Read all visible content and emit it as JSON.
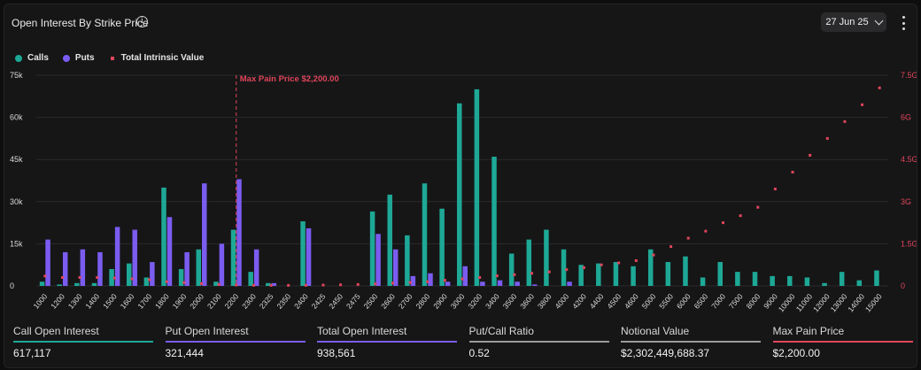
{
  "header": {
    "title": "Open Interest By Strike Price",
    "info_icon": "info-icon",
    "date_value": "27 Jun 25",
    "menu_icon": "kebab-menu-icon"
  },
  "legend": {
    "calls": "Calls",
    "puts": "Puts",
    "intrinsic": "Total Intrinsic Value"
  },
  "colors": {
    "calls": "#1ea896",
    "puts": "#7b5cf0",
    "intrinsic": "#e0455a",
    "grid": "#2a2a2d",
    "axis_text": "#d9d9d9"
  },
  "chart_data": {
    "type": "bar",
    "categories": [
      "1000",
      "1200",
      "1300",
      "1400",
      "1500",
      "1600",
      "1700",
      "1800",
      "1900",
      "2000",
      "2100",
      "2200",
      "2300",
      "2325",
      "2350",
      "2400",
      "2425",
      "2450",
      "2475",
      "2500",
      "2600",
      "2700",
      "2800",
      "2900",
      "3000",
      "3200",
      "3400",
      "3500",
      "3600",
      "3800",
      "4000",
      "4200",
      "4400",
      "4500",
      "4600",
      "5000",
      "5500",
      "6000",
      "6500",
      "7000",
      "7500",
      "8000",
      "9000",
      "10000",
      "11000",
      "12000",
      "13000",
      "14000",
      "15000"
    ],
    "series": [
      {
        "name": "Calls",
        "axis": "left",
        "values": [
          1500,
          500,
          1000,
          1000,
          6000,
          8000,
          3000,
          35000,
          6000,
          13000,
          1500,
          20000,
          5000,
          1000,
          0,
          23000,
          0,
          0,
          0,
          26500,
          32500,
          18000,
          36500,
          27500,
          65000,
          70000,
          46000,
          11500,
          16500,
          20000,
          13000,
          7500,
          8000,
          8500,
          7000,
          13000,
          8500,
          10500,
          3000,
          8500,
          5000,
          5000,
          3500,
          3500,
          3000,
          1000,
          5000,
          2000,
          5500
        ]
      },
      {
        "name": "Puts",
        "axis": "left",
        "values": [
          16500,
          12000,
          13000,
          12000,
          21000,
          20000,
          8500,
          24500,
          12000,
          36500,
          15000,
          38000,
          13000,
          1000,
          0,
          20500,
          0,
          0,
          0,
          18500,
          13000,
          3500,
          4500,
          1500,
          7000,
          1500,
          2000,
          1500,
          500,
          0,
          1500,
          0,
          0,
          0,
          0,
          0,
          0,
          0,
          0,
          0,
          0,
          0,
          0,
          0,
          0,
          0,
          0,
          0,
          0
        ]
      },
      {
        "name": "Total Intrinsic Value",
        "axis": "right",
        "values": [
          0.35,
          0.3,
          0.3,
          0.3,
          0.28,
          0.25,
          0.22,
          0.15,
          0.12,
          0.08,
          0.05,
          0.03,
          0.02,
          0.02,
          0.02,
          0.02,
          0.03,
          0.04,
          0.05,
          0.07,
          0.1,
          0.12,
          0.15,
          0.2,
          0.25,
          0.3,
          0.36,
          0.4,
          0.45,
          0.5,
          0.58,
          0.65,
          0.75,
          0.82,
          0.9,
          1.1,
          1.4,
          1.7,
          1.95,
          2.25,
          2.5,
          2.8,
          3.45,
          4.05,
          4.65,
          5.25,
          5.85,
          6.45,
          7.05
        ]
      }
    ],
    "y_left": {
      "ticks": [
        "0",
        "15k",
        "30k",
        "45k",
        "60k",
        "75k"
      ],
      "range": [
        0,
        75000
      ]
    },
    "y_right": {
      "ticks": [
        "0",
        "1.5G",
        "3G",
        "4.5G",
        "6G",
        "7.5G"
      ],
      "range": [
        0,
        7.5
      ],
      "unit": "G"
    },
    "annotation": {
      "label": "Max Pain Price $2,200.00",
      "category": "2200"
    },
    "grid": true,
    "legend_position": "top-left"
  },
  "stats": [
    {
      "label": "Call Open Interest",
      "value": "617,117",
      "color": "#1ea896"
    },
    {
      "label": "Put Open Interest",
      "value": "321,444",
      "color": "#7b5cf0"
    },
    {
      "label": "Total Open Interest",
      "value": "938,561",
      "color": "#7b5cf0"
    },
    {
      "label": "Put/Call Ratio",
      "value": "0.52",
      "color": "#9a9a9a"
    },
    {
      "label": "Notional Value",
      "value": "$2,302,449,688.37",
      "color": "#9a9a9a"
    },
    {
      "label": "Max Pain Price",
      "value": "$2,200.00",
      "color": "#e0455a"
    }
  ]
}
